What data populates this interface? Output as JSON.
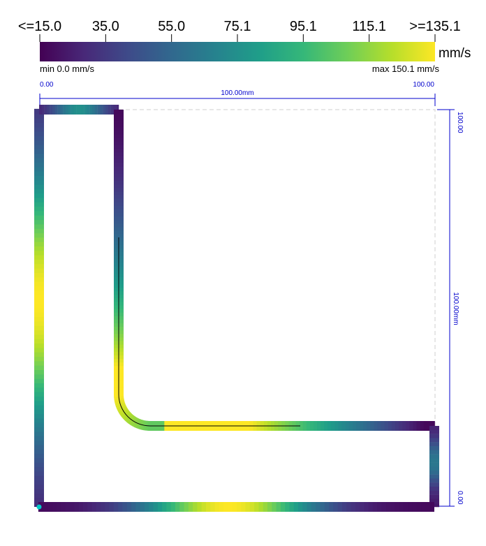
{
  "legend": {
    "tick_labels": [
      "<=15.0",
      "35.0",
      "55.0",
      "75.1",
      "95.1",
      "115.1",
      ">=135.1"
    ],
    "unit": "mm/s",
    "min_label": "min 0.0 mm/s",
    "max_label": "max 150.1 mm/s",
    "colormap": "viridis",
    "stops": [
      "#440154",
      "#482878",
      "#3e4a89",
      "#31688e",
      "#26828e",
      "#1f9e89",
      "#35b779",
      "#6ece58",
      "#b5de2b",
      "#fde725"
    ]
  },
  "dimensions": {
    "horizontal": {
      "start": "0.00",
      "end": "100.00",
      "length": "100.00mm"
    },
    "vertical": {
      "start": "0.00",
      "end": "100.00",
      "length": "100.00mm"
    },
    "color": "#0000cc"
  },
  "toolpath": {
    "shape": "L-shaped contour",
    "origin_marker_color": "#00c8c8",
    "bounding_box_style": "dashed"
  }
}
